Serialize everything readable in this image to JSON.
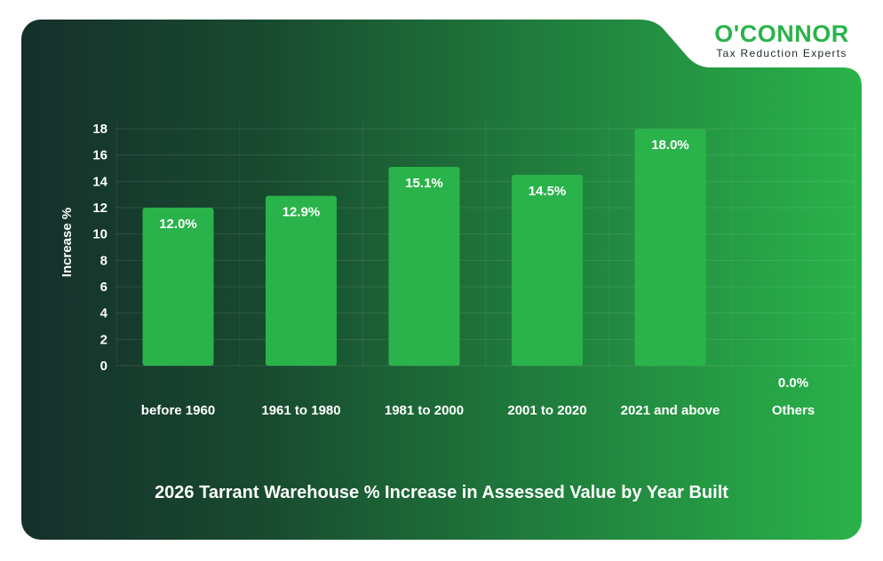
{
  "brand": {
    "name": "O'CONNOR",
    "tagline": "Tax Reduction Experts",
    "accent_color": "#2ab34a"
  },
  "chart_data": {
    "type": "bar",
    "title": "2026 Tarrant Warehouse % Increase in Assessed Value by Year Built",
    "xlabel": "",
    "ylabel": "Increase %",
    "ylim": [
      0,
      18
    ],
    "yticks": [
      0,
      2,
      4,
      6,
      8,
      10,
      12,
      14,
      16,
      18
    ],
    "categories": [
      "before 1960",
      "1961 to 1980",
      "1981 to 2000",
      "2001 to 2020",
      "2021 and above",
      "Others"
    ],
    "values": [
      12.0,
      12.9,
      15.1,
      14.5,
      18.0,
      0.0
    ],
    "data_labels": [
      "12.0%",
      "12.9%",
      "15.1%",
      "14.5%",
      "18.0%",
      "0.0%"
    ],
    "grid": true,
    "bar_color": "#2ab34a"
  }
}
